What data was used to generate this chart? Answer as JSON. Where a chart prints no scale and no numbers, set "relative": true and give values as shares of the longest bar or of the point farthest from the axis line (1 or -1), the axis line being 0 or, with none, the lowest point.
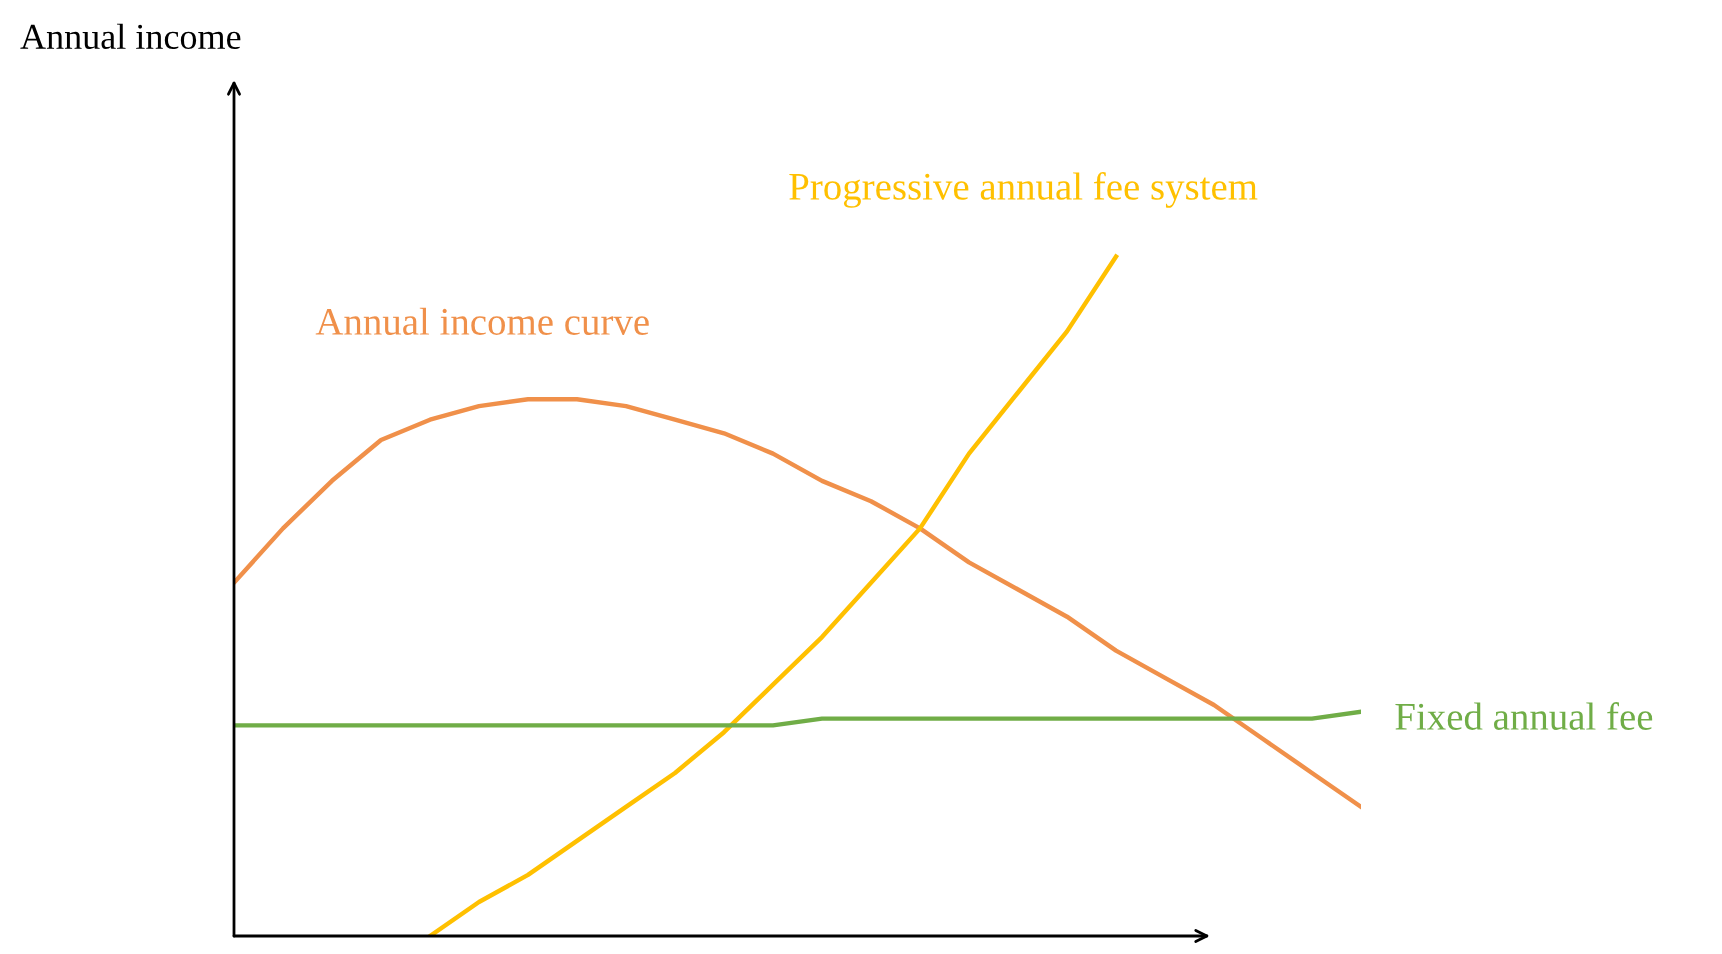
{
  "chart_data": {
    "type": "line",
    "relative": true,
    "annotations": [
      "Annual income"
    ],
    "legend": false,
    "grid": false,
    "marker": "none",
    "line_style": "solid",
    "categories": [
      null,
      null,
      null,
      null,
      null,
      null,
      null,
      null,
      null,
      null,
      null,
      null,
      null,
      null,
      null,
      null,
      null,
      null,
      null,
      null,
      null,
      null,
      null,
      null
    ],
    "series": [
      {
        "name": "Annual income curve",
        "color": "#f0904a",
        "values": [
          0.52,
          0.6,
          0.67,
          0.73,
          0.76,
          0.78,
          0.79,
          0.79,
          0.78,
          0.76,
          0.74,
          0.71,
          0.67,
          0.64,
          0.6,
          0.55,
          0.51,
          0.47,
          0.42,
          0.38,
          0.34,
          0.29,
          0.24,
          0.19
        ]
      },
      {
        "name": "Progressive annual fee system",
        "color": "#ffc000",
        "values": [
          null,
          null,
          null,
          null,
          0,
          0.05,
          0.09,
          0.14,
          0.19,
          0.24,
          0.3,
          0.37,
          0.44,
          0.52,
          0.6,
          0.71,
          0.8,
          0.89,
          1.0,
          null,
          null,
          null,
          null,
          null
        ]
      },
      {
        "name": "Fixed annual fee",
        "color": "#70ad47",
        "values": [
          0.31,
          0.31,
          0.31,
          0.31,
          0.31,
          0.31,
          0.31,
          0.31,
          0.31,
          0.31,
          0.31,
          0.31,
          0.32,
          0.32,
          0.32,
          0.32,
          0.32,
          0.32,
          0.32,
          0.32,
          0.32,
          0.32,
          0.32,
          0.33
        ]
      }
    ]
  }
}
